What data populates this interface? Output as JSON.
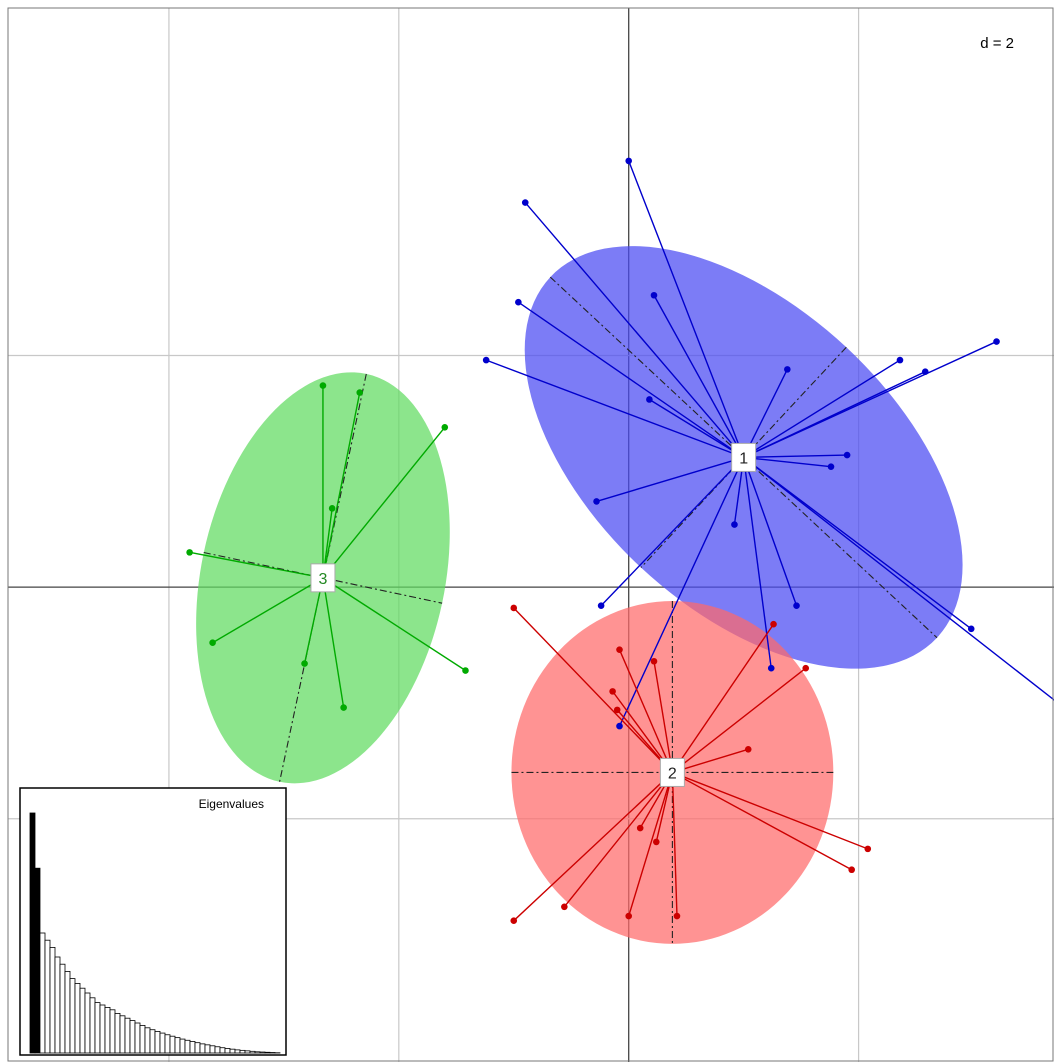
{
  "chart_data": {
    "type": "scatter",
    "subtype": "discriminant-analysis-biplot",
    "title": "",
    "xlabel": "",
    "ylabel": "",
    "scale_label": "d = 2",
    "grid": true,
    "xlim": [
      -5.4,
      3.7
    ],
    "ylim": [
      -4.1,
      5.0
    ],
    "groups": [
      {
        "name": "1",
        "color": "#0000cc",
        "fill": "#4a4af2",
        "center": [
          1.0,
          1.12
        ],
        "ellipse": {
          "rx": 2.3,
          "ry": 1.3,
          "angle_deg": 43
        },
        "points": [
          [
            0.0,
            3.68
          ],
          [
            -0.9,
            3.32
          ],
          [
            0.22,
            2.52
          ],
          [
            -0.96,
            2.46
          ],
          [
            -1.24,
            1.96
          ],
          [
            1.38,
            1.88
          ],
          [
            2.36,
            1.96
          ],
          [
            2.58,
            1.86
          ],
          [
            3.2,
            2.12
          ],
          [
            0.18,
            1.62
          ],
          [
            1.9,
            1.14
          ],
          [
            1.76,
            1.04
          ],
          [
            -0.28,
            0.74
          ],
          [
            0.92,
            0.54
          ],
          [
            -0.24,
            -0.16
          ],
          [
            1.46,
            -0.16
          ],
          [
            2.98,
            -0.36
          ],
          [
            1.24,
            -0.7
          ],
          [
            3.76,
            -1.02
          ],
          [
            -0.08,
            -1.2
          ]
        ]
      },
      {
        "name": "2",
        "color": "#cc0000",
        "fill": "#ff6a6a",
        "center": [
          0.38,
          -1.6
        ],
        "ellipse": {
          "rx": 1.4,
          "ry": 1.48,
          "angle_deg": 0
        },
        "points": [
          [
            -1.0,
            -0.18
          ],
          [
            1.26,
            -0.32
          ],
          [
            -0.08,
            -0.54
          ],
          [
            0.22,
            -0.64
          ],
          [
            1.54,
            -0.7
          ],
          [
            -0.14,
            -0.9
          ],
          [
            -0.1,
            -1.06
          ],
          [
            1.04,
            -1.4
          ],
          [
            2.08,
            -2.26
          ],
          [
            1.94,
            -2.44
          ],
          [
            0.1,
            -2.08
          ],
          [
            0.24,
            -2.2
          ],
          [
            -0.56,
            -2.76
          ],
          [
            0.0,
            -2.84
          ],
          [
            0.42,
            -2.84
          ],
          [
            -1.0,
            -2.88
          ]
        ]
      },
      {
        "name": "3",
        "color": "#00aa00",
        "fill": "#5fdb5f",
        "center": [
          -2.66,
          0.08
        ],
        "ellipse": {
          "rx": 1.06,
          "ry": 1.8,
          "angle_deg": 12
        },
        "points": [
          [
            -2.66,
            1.74
          ],
          [
            -2.34,
            1.68
          ],
          [
            -1.6,
            1.38
          ],
          [
            -2.58,
            0.68
          ],
          [
            -3.82,
            0.3
          ],
          [
            -3.62,
            -0.48
          ],
          [
            -2.82,
            -0.66
          ],
          [
            -1.42,
            -0.72
          ],
          [
            -2.48,
            -1.04
          ]
        ]
      }
    ],
    "eigenvalues_inset": {
      "title": "Eigenvalues",
      "values": [
        1.0,
        0.77,
        0.5,
        0.47,
        0.44,
        0.4,
        0.37,
        0.34,
        0.31,
        0.29,
        0.27,
        0.25,
        0.23,
        0.21,
        0.2,
        0.19,
        0.18,
        0.165,
        0.155,
        0.145,
        0.135,
        0.125,
        0.115,
        0.105,
        0.097,
        0.09,
        0.083,
        0.076,
        0.07,
        0.064,
        0.058,
        0.053,
        0.048,
        0.043,
        0.038,
        0.034,
        0.03,
        0.026,
        0.022,
        0.019,
        0.016,
        0.013,
        0.011,
        0.009,
        0.007,
        0.005,
        0.004,
        0.003,
        0.002,
        0.001
      ],
      "highlighted": 2
    }
  }
}
